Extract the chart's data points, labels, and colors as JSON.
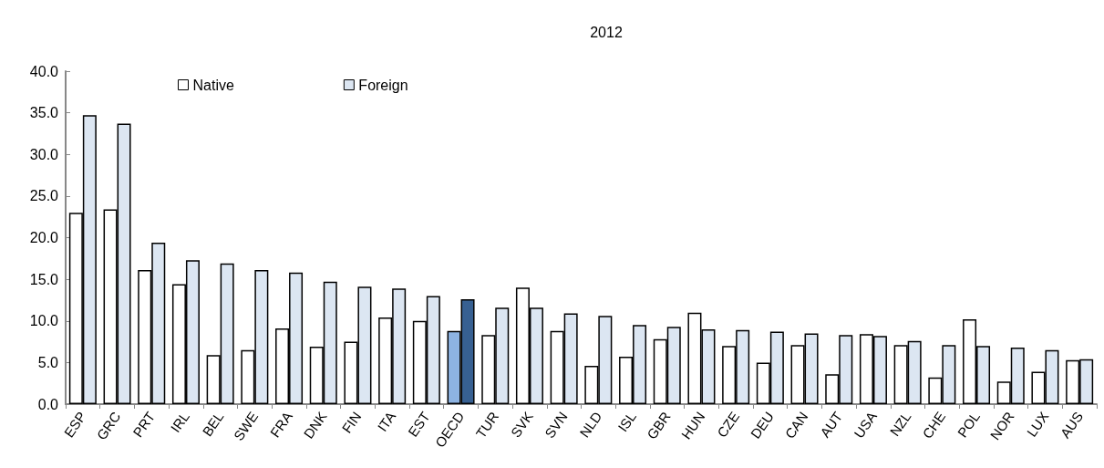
{
  "chart_data": {
    "type": "bar",
    "title": "2012",
    "categories": [
      "ESP",
      "GRC",
      "PRT",
      "IRL",
      "BEL",
      "SWE",
      "FRA",
      "DNK",
      "FIN",
      "ITA",
      "EST",
      "OECD",
      "TUR",
      "SVK",
      "SVN",
      "NLD",
      "ISL",
      "GBR",
      "HUN",
      "CZE",
      "DEU",
      "CAN",
      "AUT",
      "USA",
      "NZL",
      "CHE",
      "POL",
      "NOR",
      "LUX",
      "AUS"
    ],
    "series": [
      {
        "name": "Native",
        "color": "#ffffff",
        "colors": [
          "#ffffff",
          "#ffffff",
          "#ffffff",
          "#ffffff",
          "#ffffff",
          "#ffffff",
          "#ffffff",
          "#ffffff",
          "#ffffff",
          "#ffffff",
          "#ffffff",
          "#8db3e2",
          "#ffffff",
          "#ffffff",
          "#ffffff",
          "#ffffff",
          "#ffffff",
          "#ffffff",
          "#ffffff",
          "#ffffff",
          "#ffffff",
          "#ffffff",
          "#ffffff",
          "#ffffff",
          "#ffffff",
          "#ffffff",
          "#ffffff",
          "#ffffff",
          "#ffffff",
          "#ffffff"
        ],
        "values": [
          23.0,
          23.4,
          16.1,
          14.4,
          5.9,
          6.5,
          9.1,
          6.9,
          7.5,
          10.4,
          10.0,
          8.8,
          8.3,
          14.0,
          8.8,
          4.6,
          5.7,
          7.8,
          11.0,
          7.0,
          5.0,
          7.1,
          3.6,
          8.4,
          7.1,
          3.2,
          10.2,
          2.7,
          3.9,
          5.3
        ]
      },
      {
        "name": "Foreign",
        "color": "#dce6f2",
        "colors": [
          "#dce6f2",
          "#dce6f2",
          "#dce6f2",
          "#dce6f2",
          "#dce6f2",
          "#dce6f2",
          "#dce6f2",
          "#dce6f2",
          "#dce6f2",
          "#dce6f2",
          "#dce6f2",
          "#376092",
          "#dce6f2",
          "#dce6f2",
          "#dce6f2",
          "#dce6f2",
          "#dce6f2",
          "#dce6f2",
          "#dce6f2",
          "#dce6f2",
          "#dce6f2",
          "#dce6f2",
          "#dce6f2",
          "#dce6f2",
          "#dce6f2",
          "#dce6f2",
          "#dce6f2",
          "#dce6f2",
          "#dce6f2",
          "#dce6f2"
        ],
        "values": [
          34.7,
          33.7,
          19.4,
          17.3,
          16.9,
          16.1,
          15.8,
          14.7,
          14.1,
          13.9,
          13.0,
          12.6,
          11.6,
          11.6,
          10.9,
          10.6,
          9.5,
          9.3,
          9.0,
          8.9,
          8.7,
          8.5,
          8.3,
          8.2,
          7.6,
          7.1,
          7.0,
          6.8,
          6.5,
          5.4
        ]
      }
    ],
    "ylim": [
      0,
      40
    ],
    "yticks": [
      {
        "value": 0,
        "label": "0.0"
      },
      {
        "value": 5,
        "label": "5.0"
      },
      {
        "value": 10,
        "label": "10.0"
      },
      {
        "value": 15,
        "label": "15.0"
      },
      {
        "value": 20,
        "label": "20.0"
      },
      {
        "value": 25,
        "label": "25.0"
      },
      {
        "value": 30,
        "label": "30.0"
      },
      {
        "value": 35,
        "label": "35.0"
      },
      {
        "value": 40,
        "label": "40.0"
      }
    ],
    "grid": false,
    "legend": "top left"
  }
}
